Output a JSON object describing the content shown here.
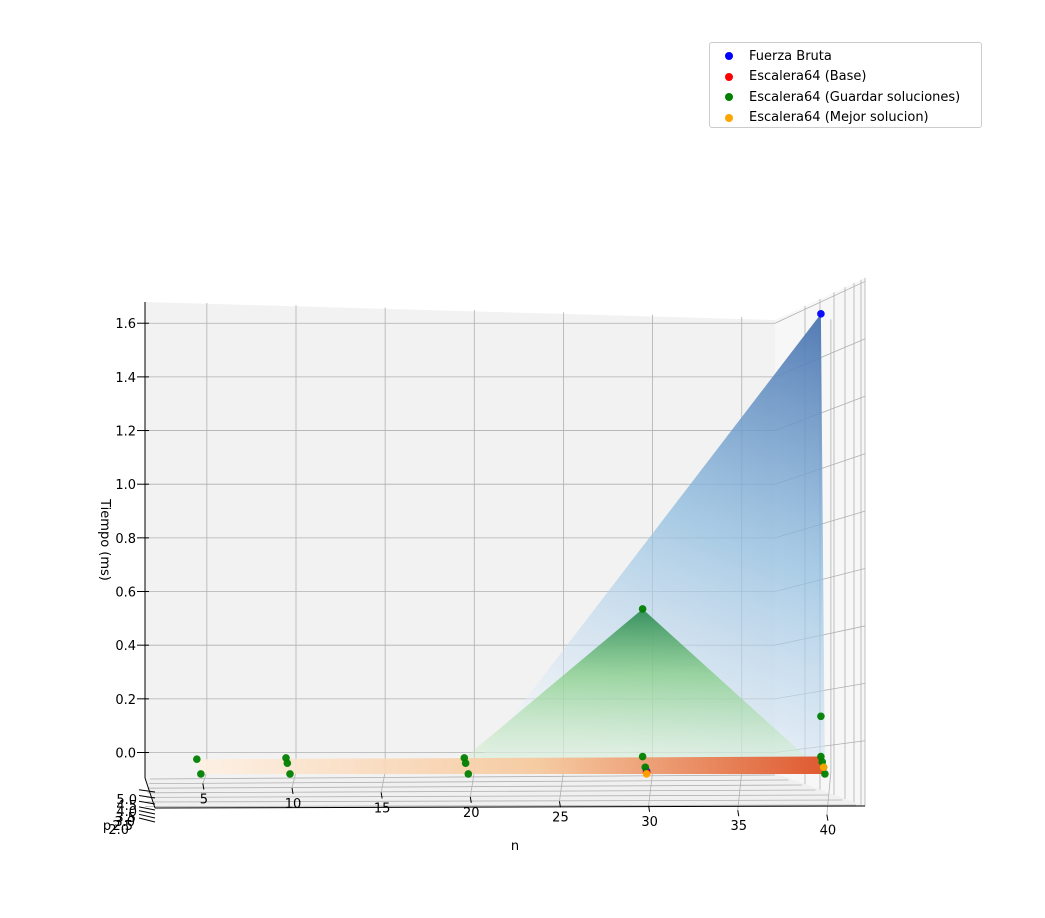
{
  "chart_data": {
    "type": "scatter",
    "projection": "3d",
    "xlabel": "n",
    "ylabel": "p",
    "zlabel": "Tiempo (ms)",
    "xlim": [
      3,
      42
    ],
    "ylim": [
      2.0,
      5.0
    ],
    "zlim": [
      -0.1,
      1.7
    ],
    "x_ticks": [
      "5",
      "10",
      "15",
      "20",
      "25",
      "30",
      "35",
      "40"
    ],
    "y_ticks": [
      "2.0",
      "2.5",
      "3.0",
      "3.5",
      "4.0",
      "4.5",
      "5.0"
    ],
    "z_ticks": [
      "0.0",
      "0.2",
      "0.4",
      "0.6",
      "0.8",
      "1.0",
      "1.2",
      "1.4",
      "1.6"
    ],
    "grid": true,
    "legend_position": "top-right",
    "surfaces": [
      "Blues",
      "Greens",
      "Oranges"
    ],
    "series": [
      {
        "name": "Fuerza Bruta",
        "color": "#0000ff",
        "points": [
          {
            "n": 30,
            "p": 2.0,
            "t": -0.07
          },
          {
            "n": 40,
            "p": 5.0,
            "t": 1.62
          }
        ]
      },
      {
        "name": "Escalera64 (Base)",
        "color": "#ff0000",
        "points": [
          {
            "n": 30,
            "p": 2.0,
            "t": -0.075
          }
        ]
      },
      {
        "name": "Escalera64 (Guardar soluciones)",
        "color": "#008000",
        "points": [
          {
            "n": 5,
            "p": 2.0,
            "t": -0.08
          },
          {
            "n": 5,
            "p": 5.0,
            "t": -0.04
          },
          {
            "n": 10,
            "p": 2.0,
            "t": -0.08
          },
          {
            "n": 10,
            "p": 4.0,
            "t": -0.05
          },
          {
            "n": 10,
            "p": 5.0,
            "t": -0.035
          },
          {
            "n": 20,
            "p": 2.0,
            "t": -0.08
          },
          {
            "n": 20,
            "p": 4.0,
            "t": -0.05
          },
          {
            "n": 20,
            "p": 5.0,
            "t": -0.035
          },
          {
            "n": 30,
            "p": 3.0,
            "t": -0.06
          },
          {
            "n": 30,
            "p": 5.0,
            "t": 0.52
          },
          {
            "n": 30,
            "p": 5.0,
            "t": -0.03
          },
          {
            "n": 40,
            "p": 2.0,
            "t": -0.08
          },
          {
            "n": 40,
            "p": 3.0,
            "t": -0.06
          },
          {
            "n": 40,
            "p": 4.0,
            "t": -0.045
          },
          {
            "n": 40,
            "p": 5.0,
            "t": 0.12
          },
          {
            "n": 40,
            "p": 5.0,
            "t": -0.03
          }
        ]
      },
      {
        "name": "Escalera64 (Mejor solucion)",
        "color": "#ffa500",
        "points": [
          {
            "n": 30,
            "p": 2.0,
            "t": -0.08
          },
          {
            "n": 40,
            "p": 3.0,
            "t": -0.06
          }
        ]
      }
    ]
  }
}
